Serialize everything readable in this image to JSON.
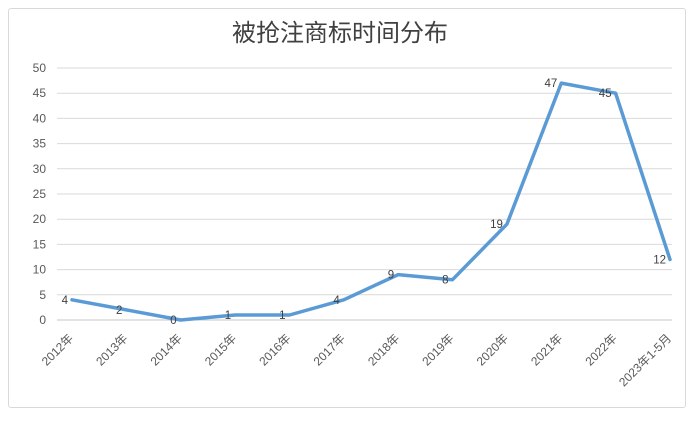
{
  "window": {
    "background_color": "#ffffff",
    "border_color": "#D9D9D9"
  },
  "chart_data": {
    "type": "line",
    "title": "被抢注商标时间分布",
    "categories": [
      "2012年",
      "2013年",
      "2014年",
      "2015年",
      "2016年",
      "2017年",
      "2018年",
      "2019年",
      "2020年",
      "2021年",
      "2022年",
      "2023年1-5月"
    ],
    "values": [
      4,
      2,
      0,
      1,
      1,
      4,
      9,
      8,
      19,
      47,
      45,
      12
    ],
    "data_labels": [
      "4",
      "2",
      "0",
      "1",
      "1",
      "4",
      "9",
      "8",
      "19",
      "47",
      "45",
      "12"
    ],
    "xlabel": "",
    "ylabel": "",
    "ylim": [
      0,
      50
    ],
    "y_tick_step": 5,
    "y_ticks": [
      0,
      5,
      10,
      15,
      20,
      25,
      30,
      35,
      40,
      45,
      50
    ],
    "grid": true,
    "legend_position": "none",
    "x_label_rotation_deg": 45,
    "line_color": "#5B9BD5",
    "gridline_color": "#D9D9D9",
    "axis_line_color": "#C6C6C6",
    "axis_label_color": "#595959",
    "data_label_color": "#404040",
    "title_color": "#404040"
  }
}
